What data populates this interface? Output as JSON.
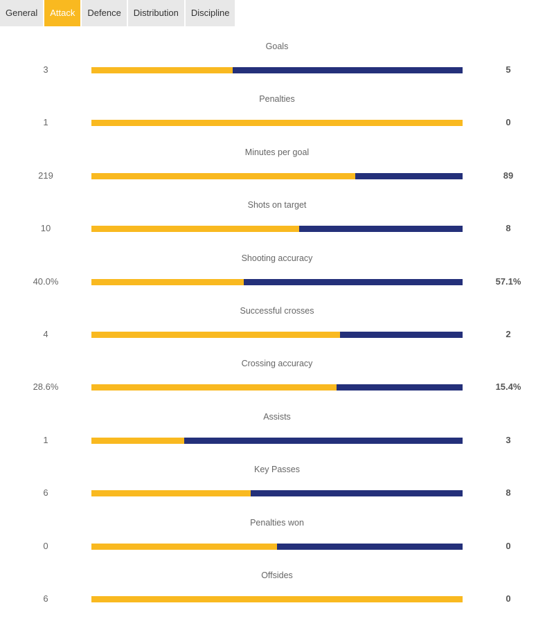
{
  "tabs": [
    {
      "label": "General",
      "active": false
    },
    {
      "label": "Attack",
      "active": true
    },
    {
      "label": "Defence",
      "active": false
    },
    {
      "label": "Distribution",
      "active": false
    },
    {
      "label": "Discipline",
      "active": false
    }
  ],
  "colors": {
    "home": "#f9b920",
    "away": "#24307a",
    "active_tab": "#f9b920",
    "inactive_tab": "#e8e8e8"
  },
  "stats": [
    {
      "label": "Goals",
      "home": "3",
      "away": "5",
      "home_share": 0.38
    },
    {
      "label": "Penalties",
      "home": "1",
      "away": "0",
      "home_share": 1.0
    },
    {
      "label": "Minutes per goal",
      "home": "219",
      "away": "89",
      "home_share": 0.71
    },
    {
      "label": "Shots on target",
      "home": "10",
      "away": "8",
      "home_share": 0.56
    },
    {
      "label": "Shooting accuracy",
      "home": "40.0%",
      "away": "57.1%",
      "home_share": 0.41
    },
    {
      "label": "Successful crosses",
      "home": "4",
      "away": "2",
      "home_share": 0.67
    },
    {
      "label": "Crossing accuracy",
      "home": "28.6%",
      "away": "15.4%",
      "home_share": 0.66
    },
    {
      "label": "Assists",
      "home": "1",
      "away": "3",
      "home_share": 0.25
    },
    {
      "label": "Key Passes",
      "home": "6",
      "away": "8",
      "home_share": 0.43
    },
    {
      "label": "Penalties won",
      "home": "0",
      "away": "0",
      "home_share": 0.5
    },
    {
      "label": "Offsides",
      "home": "6",
      "away": "0",
      "home_share": 1.0
    }
  ]
}
